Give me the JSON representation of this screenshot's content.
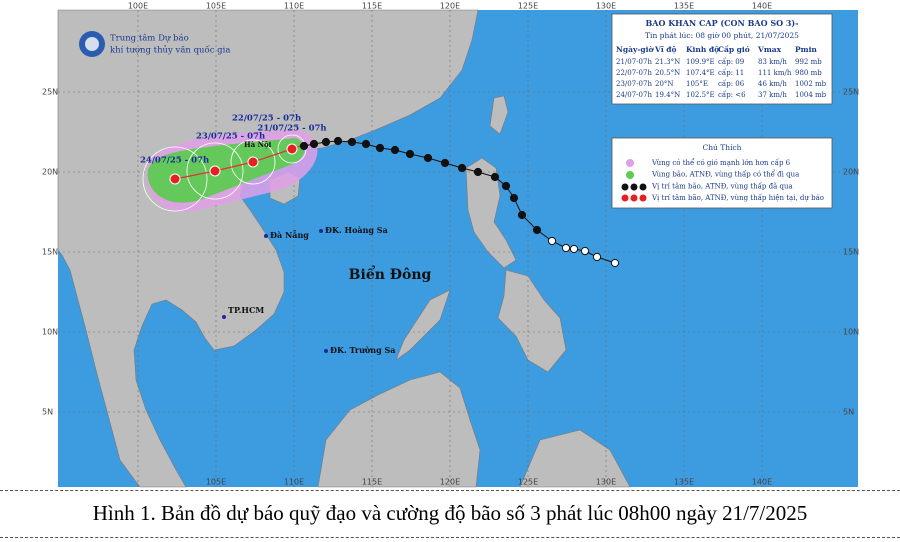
{
  "logo": {
    "line1": "Trung tâm Dự báo",
    "line2": "khí tượng thủy văn quốc gia"
  },
  "axes": {
    "top": [
      "100E",
      "105E",
      "110E",
      "115E",
      "120E",
      "125E",
      "130E",
      "135E",
      "140E"
    ],
    "bottom": [
      "105E",
      "110E",
      "115E",
      "120E",
      "125E",
      "130E",
      "135E",
      "140E"
    ],
    "left": [
      "25N",
      "20N",
      "15N",
      "10N",
      "5N"
    ],
    "right": [
      "25N",
      "20N",
      "15N",
      "10N",
      "5N"
    ]
  },
  "info_table": {
    "title": "BAO KHAN CAP (CON BAO SO 3)-",
    "subtitle": "Tin phát lúc: 08 giờ 00 phút, 21/07/2025",
    "headers": [
      "Ngày-giờ",
      "Vĩ độ",
      "Kinh độ",
      "Cấp gió",
      "Vmax",
      "Pmin"
    ],
    "rows": [
      [
        "21/07-07h",
        "21.3°N",
        "109.9°E",
        "cấp: 09",
        "83 km/h",
        "992 mb"
      ],
      [
        "22/07-07h",
        "20.5°N",
        "107.4°E",
        "cấp: 11",
        "111 km/h",
        "980 mb"
      ],
      [
        "23/07-07h",
        "20°N",
        "105°E",
        "cấp: 06",
        "46 km/h",
        "1002 mb"
      ],
      [
        "24/07-07h",
        "19.4°N",
        "102.5°E",
        "cấp: <6",
        "37 km/h",
        "1004 mb"
      ]
    ]
  },
  "legend": {
    "title": "Chú Thích",
    "items": [
      "Vùng có thể có gió mạnh lớn hơn cấp 6",
      "Vùng bão, ATNĐ, vùng thấp có thể đi qua",
      "Vị trí tâm bão, ATNĐ, vùng thấp đã qua",
      "Vị trí tâm bão, ATNĐ, vùng thấp hiện tại, dự báo"
    ]
  },
  "forecast_labels": [
    "21/07/25 - 07h",
    "22/07/25 - 07h",
    "23/07/25 - 07h",
    "24/07/25 - 07h"
  ],
  "places": {
    "ha_noi": "Hà Nội",
    "da_nang": "Đà Nẵng",
    "hoang_sa": "ĐK. Hoàng Sa",
    "bien_dong": "Biển Đông",
    "tp_hcm": "TP.HCM",
    "truong_sa": "ĐK. Trường Sa"
  },
  "caption": "Hình 1. Bản đồ dự báo quỹ đạo và cường độ bão số 3 phát lúc 08h00 ngày 21/7/2025"
}
